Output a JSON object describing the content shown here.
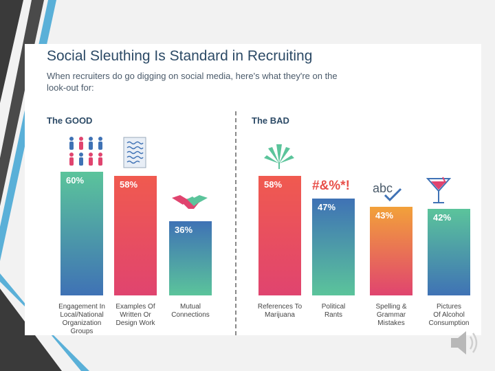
{
  "chart_data": {
    "type": "bar",
    "title": "Social Sleuthing Is Standard in Recruiting",
    "subtitle": "When recruiters do go digging on social media, here's what they're on the look-out for:",
    "groups": [
      {
        "name": "The GOOD",
        "categories": [
          "Engagement In Local/National Organization Groups",
          "Examples Of Written Or Design Work",
          "Mutual Connections"
        ],
        "values": [
          60,
          58,
          36
        ]
      },
      {
        "name": "The BAD",
        "categories": [
          "References To Marijuana",
          "Political Rants",
          "Spelling & Grammar Mistakes",
          "Pictures Of Alcohol Consumption"
        ],
        "values": [
          58,
          47,
          43,
          42
        ]
      }
    ],
    "value_labels": [
      "60%",
      "58%",
      "36%",
      "58%",
      "47%",
      "43%",
      "42%"
    ],
    "cat_lines": [
      [
        "Engagement In",
        "Local/National",
        "Organization",
        "Groups"
      ],
      [
        "Examples Of",
        "Written Or",
        "Design Work"
      ],
      [
        "Mutual",
        "Connections"
      ],
      [
        "References To",
        "Marijuana"
      ],
      [
        "Political",
        "Rants"
      ],
      [
        "Spelling &",
        "Grammar",
        "Mistakes"
      ],
      [
        "Pictures",
        "Of Alcohol",
        "Consumption"
      ]
    ],
    "ylim": [
      0,
      60
    ]
  },
  "rants_text": "#&%*!",
  "abc_text": "abc",
  "colors": {
    "title": "#2c4a66",
    "good": [
      "#5bc49b",
      "#f05a4f",
      "#5bc49b"
    ],
    "bad": [
      "#f0604f",
      "#5bc49b",
      "#f2a13a",
      "#5bc49b"
    ],
    "pink": "#e0446f",
    "blue": "#3f72b5",
    "red": "#e8504a"
  }
}
